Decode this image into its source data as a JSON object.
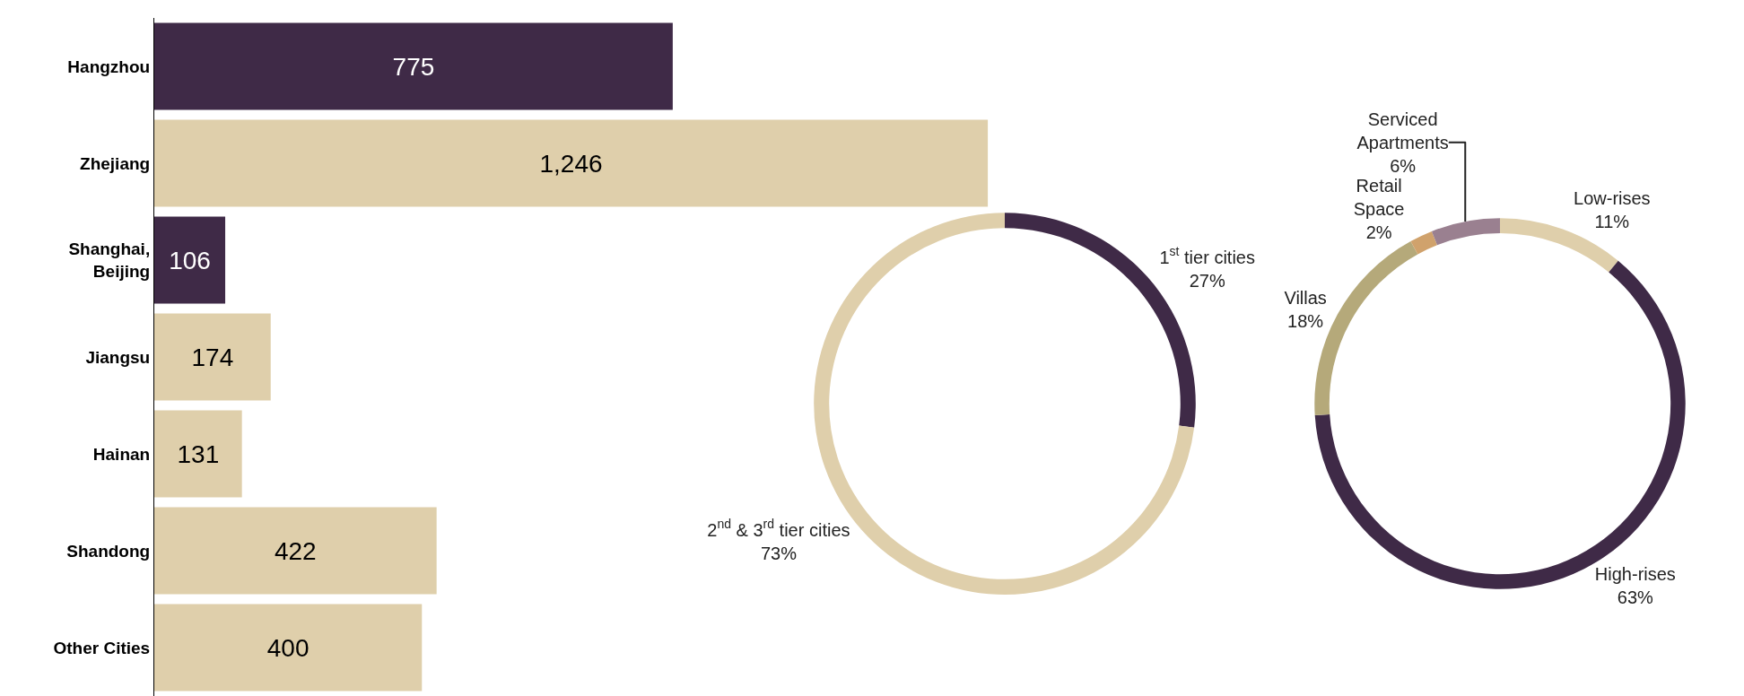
{
  "chart_data": [
    {
      "type": "bar",
      "orientation": "horizontal",
      "categories": [
        "Hangzhou",
        "Zhejiang",
        "Shanghai, Beijing",
        "Jiangsu",
        "Hainan",
        "Shandong",
        "Other Cities"
      ],
      "values": [
        775,
        1246,
        106,
        174,
        131,
        422,
        400
      ],
      "colors": [
        "#3f2a47",
        "#dfcfab",
        "#3f2a47",
        "#dfcfab",
        "#dfcfab",
        "#dfcfab",
        "#dfcfab"
      ],
      "value_labels": [
        "775",
        "1,246",
        "106",
        "174",
        "131",
        "422",
        "400"
      ]
    },
    {
      "type": "donut",
      "categories": [
        "1$^{st}$ tier cities",
        "2$^{nd}$ & 3$^{rd}$ tier cities"
      ],
      "values": [
        27,
        73
      ],
      "value_labels": [
        "27%",
        "73%"
      ],
      "colors": [
        "#3f2a47",
        "#dfcfab"
      ]
    },
    {
      "type": "donut",
      "categories": [
        "Low-rises",
        "High-rises",
        "Villas",
        "Retail Space",
        "Serviced Apartments"
      ],
      "values": [
        11,
        63,
        18,
        2,
        6
      ],
      "value_labels": [
        "11%",
        "63%",
        "18%",
        "2%",
        "6%"
      ],
      "colors": [
        "#dfcfab",
        "#3f2a47",
        "#b5a97a",
        "#d0a26c",
        "#9a8090"
      ]
    }
  ]
}
